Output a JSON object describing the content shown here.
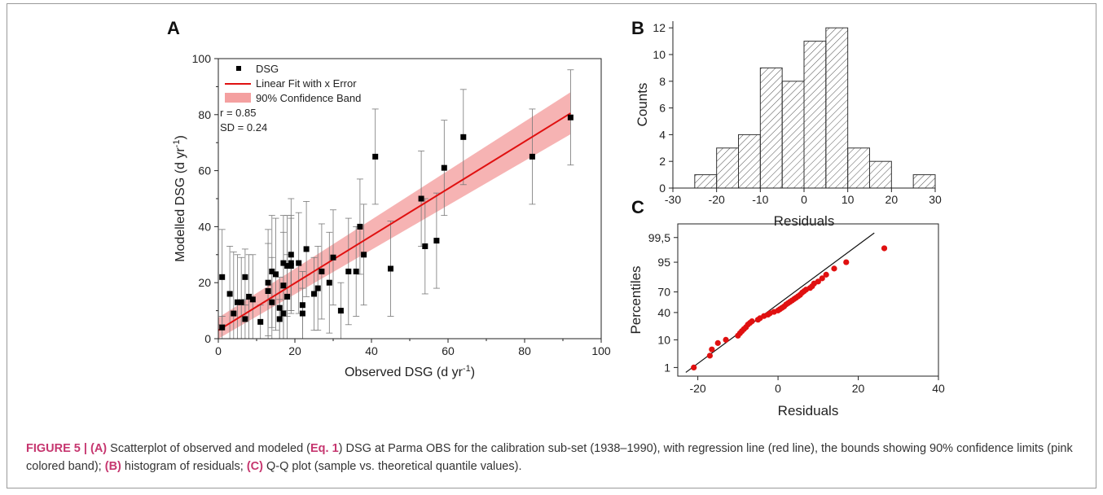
{
  "panel_letters": {
    "a": "A",
    "b": "B",
    "c": "C"
  },
  "caption": {
    "fig": "FIGURE 5 |",
    "a_lbl": "(A)",
    "text1": " Scatterplot of observed and modeled (",
    "eq": "Eq. 1",
    "text2": ") DSG at Parma OBS for the calibration sub-set (1938–1990), with regression line (red line), the bounds showing 90% confidence limits (pink colored band); ",
    "b_lbl": "(B)",
    "text3": " histogram of residuals; ",
    "c_lbl": "(C)",
    "text4": " Q-Q plot (sample vs. theoretical quantile values)."
  },
  "colors": {
    "fit": "#e01010",
    "band": "#f4a0a0",
    "point": "#000000",
    "qq_point": "#e01010",
    "bar_hatch": "#555555"
  },
  "chart_data": [
    {
      "type": "scatter",
      "panel": "A",
      "xlabel": "Observed DSG (d yr⁻¹)",
      "ylabel": "Modelled DSG (d yr⁻¹)",
      "xlim": [
        0,
        100
      ],
      "ylim": [
        0,
        100
      ],
      "xticks": [
        0,
        20,
        40,
        60,
        80,
        100
      ],
      "yticks": [
        0,
        20,
        40,
        60,
        80,
        100
      ],
      "legend": {
        "position": "top-left",
        "entries": [
          "DSG",
          "Linear Fit with x Error",
          "90% Confidence Band"
        ],
        "stats": [
          "r = 0.85",
          "SD = 0.24"
        ]
      },
      "fit": {
        "x": [
          0,
          92
        ],
        "y": [
          3,
          80.5
        ]
      },
      "band": {
        "x": [
          0,
          92
        ],
        "lower": [
          0,
          73
        ],
        "upper": [
          7.5,
          88
        ]
      },
      "series": [
        {
          "name": "DSG",
          "points": [
            [
              1,
              22,
              17
            ],
            [
              1,
              4,
              4
            ],
            [
              3,
              16,
              17
            ],
            [
              4,
              9,
              22
            ],
            [
              5,
              13,
              17
            ],
            [
              6,
              13,
              16
            ],
            [
              7,
              22,
              10
            ],
            [
              7,
              7,
              7
            ],
            [
              8,
              15,
              15
            ],
            [
              9,
              14,
              16
            ],
            [
              11,
              6,
              6
            ],
            [
              13,
              20,
              19
            ],
            [
              13,
              17,
              17
            ],
            [
              14,
              24,
              20
            ],
            [
              14,
              13,
              16
            ],
            [
              15,
              23,
              20
            ],
            [
              16,
              7,
              7
            ],
            [
              16,
              11,
              11
            ],
            [
              17,
              27,
              17
            ],
            [
              17,
              19,
              19
            ],
            [
              17,
              9,
              9
            ],
            [
              18,
              26,
              18
            ],
            [
              18,
              15,
              15
            ],
            [
              19,
              27,
              17
            ],
            [
              19,
              30,
              20
            ],
            [
              19,
              26,
              17
            ],
            [
              21,
              27,
              18
            ],
            [
              22,
              12,
              12
            ],
            [
              22,
              9,
              9
            ],
            [
              23,
              32,
              17
            ],
            [
              25,
              16,
              13
            ],
            [
              26,
              18,
              15
            ],
            [
              27,
              24,
              17
            ],
            [
              29,
              20,
              18
            ],
            [
              30,
              29,
              17
            ],
            [
              32,
              10,
              10
            ],
            [
              34,
              24,
              19
            ],
            [
              36,
              24,
              16
            ],
            [
              37,
              40,
              17
            ],
            [
              38,
              30,
              18
            ],
            [
              41,
              65,
              17
            ],
            [
              45,
              25,
              17
            ],
            [
              53,
              50,
              17
            ],
            [
              54,
              33,
              17
            ],
            [
              57,
              35,
              17
            ],
            [
              59,
              61,
              17
            ],
            [
              64,
              72,
              17
            ],
            [
              82,
              65,
              17
            ],
            [
              92,
              79,
              17
            ]
          ]
        }
      ]
    },
    {
      "type": "bar",
      "panel": "B",
      "xlabel": "Residuals",
      "ylabel": "Counts",
      "xlim": [
        -30,
        30
      ],
      "ylim": [
        0,
        12.5
      ],
      "xticks": [
        -30,
        -20,
        -10,
        0,
        10,
        20,
        30
      ],
      "yticks": [
        0,
        2,
        4,
        6,
        8,
        10,
        12
      ],
      "bins": [
        [
          -25,
          -20
        ],
        [
          -20,
          -15
        ],
        [
          -15,
          -10
        ],
        [
          -10,
          -5
        ],
        [
          -5,
          0
        ],
        [
          0,
          5
        ],
        [
          5,
          10
        ],
        [
          10,
          15
        ],
        [
          15,
          20
        ],
        [
          20,
          25
        ],
        [
          25,
          30
        ]
      ],
      "values": [
        1,
        3,
        4,
        9,
        8,
        11,
        12,
        3,
        2,
        0,
        1
      ]
    },
    {
      "type": "scatter",
      "panel": "C",
      "xlabel": "Residuals",
      "ylabel": "Percentiles",
      "xlim": [
        -25,
        40
      ],
      "xticks": [
        -20,
        0,
        20,
        40
      ],
      "yticks": [
        "1",
        "10",
        "40",
        "70",
        "95",
        "99,5"
      ],
      "reference_line": {
        "x": [
          -23,
          24
        ]
      },
      "points": [
        [
          -21,
          1
        ],
        [
          -17,
          3
        ],
        [
          -16.5,
          5
        ],
        [
          -15,
          8
        ],
        [
          -13,
          10
        ],
        [
          -10,
          13
        ],
        [
          -9.5,
          15
        ],
        [
          -9,
          17
        ],
        [
          -8.5,
          19
        ],
        [
          -8,
          21
        ],
        [
          -7.5,
          24
        ],
        [
          -7,
          26
        ],
        [
          -6.5,
          28
        ],
        [
          -5,
          30
        ],
        [
          -4.5,
          32
        ],
        [
          -3.5,
          35
        ],
        [
          -2.5,
          37
        ],
        [
          -2,
          39
        ],
        [
          -1,
          41
        ],
        [
          0,
          43
        ],
        [
          0.5,
          45
        ],
        [
          1,
          47
        ],
        [
          1.5,
          49
        ],
        [
          2,
          52
        ],
        [
          2.5,
          54
        ],
        [
          3,
          56
        ],
        [
          3.5,
          58
        ],
        [
          4,
          60
        ],
        [
          4.5,
          62
        ],
        [
          5,
          64
        ],
        [
          5.5,
          66
        ],
        [
          6,
          69
        ],
        [
          6.5,
          71
        ],
        [
          7,
          73
        ],
        [
          8,
          75
        ],
        [
          8.5,
          77
        ],
        [
          9,
          80
        ],
        [
          10,
          82
        ],
        [
          11,
          85
        ],
        [
          12,
          88
        ],
        [
          14,
          92
        ],
        [
          17,
          95
        ],
        [
          26.5,
          98.5
        ]
      ]
    }
  ]
}
